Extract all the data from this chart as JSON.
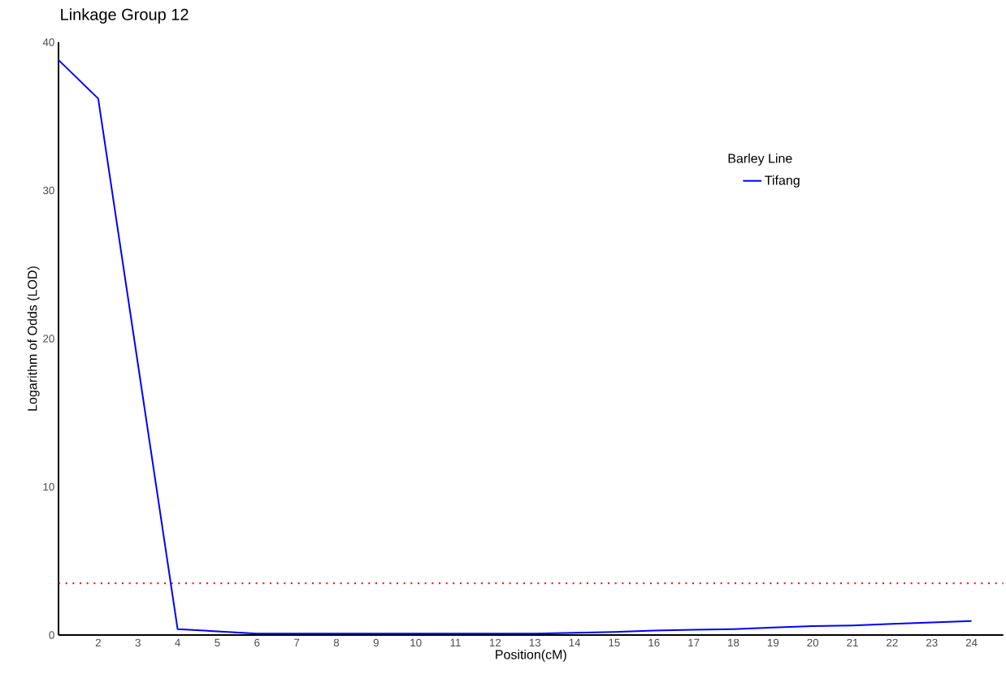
{
  "chart_data": {
    "type": "line",
    "title": "Linkage Group 12",
    "xlabel": "Position(cM)",
    "ylabel": "Logarithm of Odds (LOD)",
    "legend_title": "Barley Line",
    "x": [
      1,
      2,
      3,
      4,
      5,
      6,
      7,
      8,
      9,
      10,
      11,
      12,
      13,
      14,
      15,
      16,
      17,
      18,
      19,
      20,
      21,
      22,
      23,
      24
    ],
    "series": [
      {
        "name": "Tifang",
        "color": "#0000ff",
        "values": [
          38.8,
          36.2,
          18.3,
          0.4,
          0.25,
          0.1,
          0.1,
          0.1,
          0.1,
          0.1,
          0.1,
          0.1,
          0.1,
          0.15,
          0.2,
          0.3,
          0.35,
          0.4,
          0.5,
          0.6,
          0.65,
          0.75,
          0.85,
          0.95
        ]
      }
    ],
    "xlim": [
      1,
      24.8
    ],
    "ylim": [
      0,
      40
    ],
    "xticks": [
      2,
      3,
      4,
      5,
      6,
      7,
      8,
      9,
      10,
      11,
      12,
      13,
      14,
      15,
      16,
      17,
      18,
      19,
      20,
      21,
      22,
      23,
      24
    ],
    "yticks": [
      0,
      10,
      20,
      30,
      40
    ],
    "ref_lines": [
      {
        "axis": "y",
        "value": 3.5,
        "color": "#ff0000",
        "line_style": "dotted"
      }
    ],
    "legend": "top right",
    "marker": "none",
    "line_style": "solid"
  }
}
